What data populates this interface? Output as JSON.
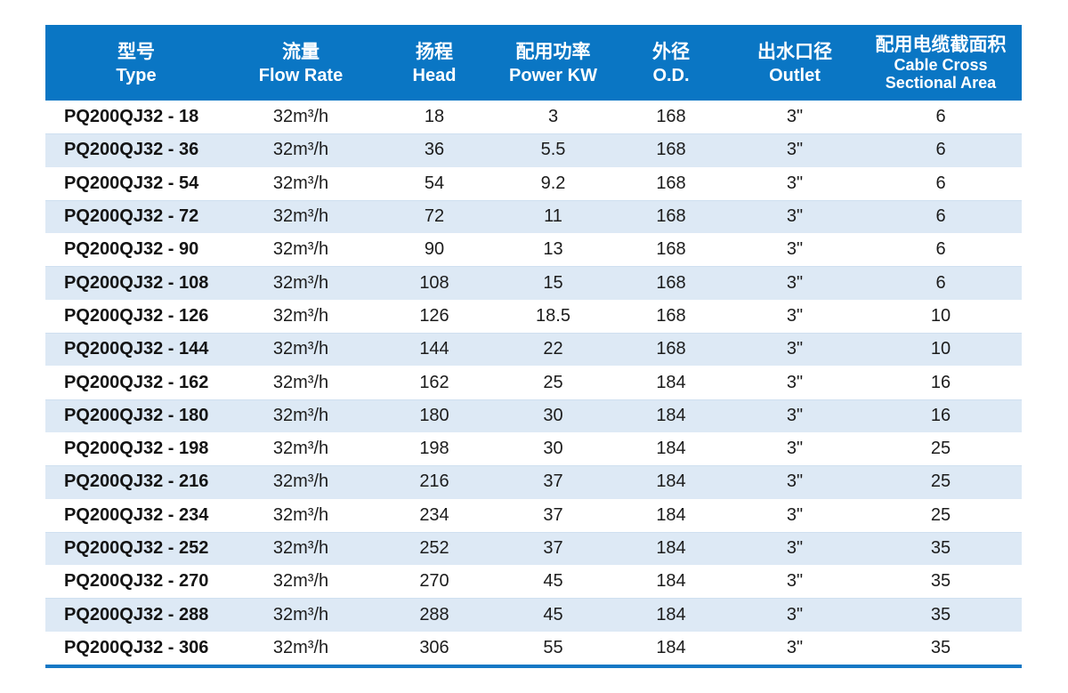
{
  "colors": {
    "header_bg": "#0a76c4",
    "header_text": "#ffffff",
    "stripe_bg": "#dde9f5",
    "stripe_edge": "#cfe0f0",
    "row_text": "#1c1c1c",
    "model_text": "#141414",
    "bottom_rule": "#1578c5"
  },
  "table": {
    "columns": [
      {
        "key": "type",
        "zh": "型号",
        "en": "Type"
      },
      {
        "key": "flow_rate",
        "zh": "流量",
        "en": "Flow Rate"
      },
      {
        "key": "head",
        "zh": "扬程",
        "en": "Head"
      },
      {
        "key": "power_kw",
        "zh": "配用功率",
        "en": "Power KW"
      },
      {
        "key": "od",
        "zh": "外径",
        "en": "O.D."
      },
      {
        "key": "outlet",
        "zh": "出水口径",
        "en": "Outlet"
      },
      {
        "key": "cable_cross_sectional_area",
        "zh": "配用电缆截面积",
        "en": "Cable Cross",
        "en2": "Sectional Area"
      }
    ],
    "rows": [
      [
        "PQ200QJ32 - 18",
        "32m³/h",
        "18",
        "3",
        "168",
        "3\"",
        "6"
      ],
      [
        "PQ200QJ32 - 36",
        "32m³/h",
        "36",
        "5.5",
        "168",
        "3\"",
        "6"
      ],
      [
        "PQ200QJ32 - 54",
        "32m³/h",
        "54",
        "9.2",
        "168",
        "3\"",
        "6"
      ],
      [
        "PQ200QJ32 - 72",
        "32m³/h",
        "72",
        "11",
        "168",
        "3\"",
        "6"
      ],
      [
        "PQ200QJ32 - 90",
        "32m³/h",
        "90",
        "13",
        "168",
        "3\"",
        "6"
      ],
      [
        "PQ200QJ32 - 108",
        "32m³/h",
        "108",
        "15",
        "168",
        "3\"",
        "6"
      ],
      [
        "PQ200QJ32 - 126",
        "32m³/h",
        "126",
        "18.5",
        "168",
        "3\"",
        "10"
      ],
      [
        "PQ200QJ32 - 144",
        "32m³/h",
        "144",
        "22",
        "168",
        "3\"",
        "10"
      ],
      [
        "PQ200QJ32 - 162",
        "32m³/h",
        "162",
        "25",
        "184",
        "3\"",
        "16"
      ],
      [
        "PQ200QJ32 - 180",
        "32m³/h",
        "180",
        "30",
        "184",
        "3\"",
        "16"
      ],
      [
        "PQ200QJ32 - 198",
        "32m³/h",
        "198",
        "30",
        "184",
        "3\"",
        "25"
      ],
      [
        "PQ200QJ32 - 216",
        "32m³/h",
        "216",
        "37",
        "184",
        "3\"",
        "25"
      ],
      [
        "PQ200QJ32 - 234",
        "32m³/h",
        "234",
        "37",
        "184",
        "3\"",
        "25"
      ],
      [
        "PQ200QJ32 - 252",
        "32m³/h",
        "252",
        "37",
        "184",
        "3\"",
        "35"
      ],
      [
        "PQ200QJ32 - 270",
        "32m³/h",
        "270",
        "45",
        "184",
        "3\"",
        "35"
      ],
      [
        "PQ200QJ32 - 288",
        "32m³/h",
        "288",
        "45",
        "184",
        "3\"",
        "35"
      ],
      [
        "PQ200QJ32 - 306",
        "32m³/h",
        "306",
        "55",
        "184",
        "3\"",
        "35"
      ]
    ]
  }
}
